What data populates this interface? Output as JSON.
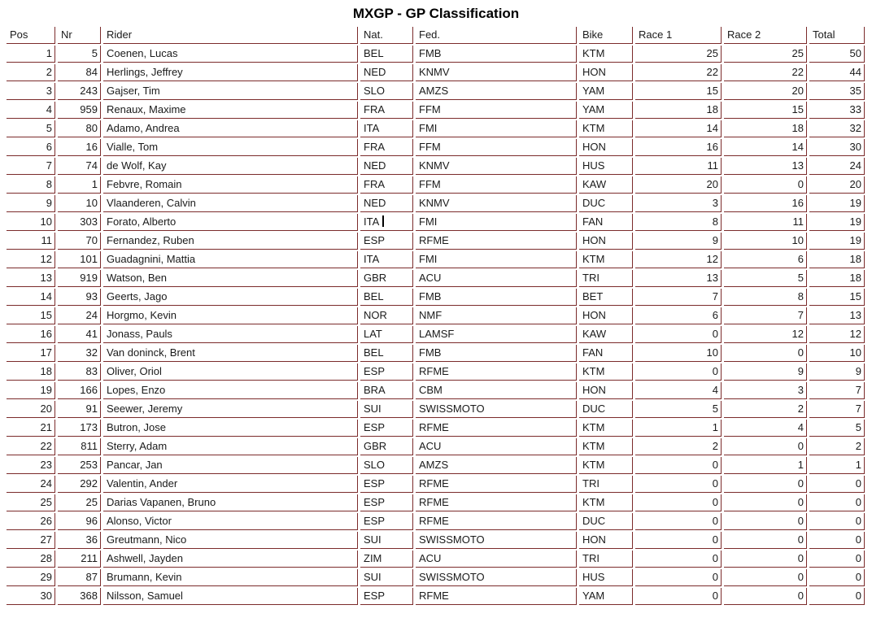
{
  "title": "MXGP - GP Classification",
  "colors": {
    "table_border": "#7b2b2b",
    "text": "#1a1a1a",
    "background": "#ffffff"
  },
  "table": {
    "columns": [
      {
        "key": "pos",
        "label": "Pos",
        "align": "right"
      },
      {
        "key": "nr",
        "label": "Nr",
        "align": "right"
      },
      {
        "key": "rider",
        "label": "Rider",
        "align": "left"
      },
      {
        "key": "nat",
        "label": "Nat.",
        "align": "left"
      },
      {
        "key": "fed",
        "label": "Fed.",
        "align": "left"
      },
      {
        "key": "bike",
        "label": "Bike",
        "align": "left"
      },
      {
        "key": "race1",
        "label": "Race 1",
        "align": "right"
      },
      {
        "key": "race2",
        "label": "Race 2",
        "align": "right"
      },
      {
        "key": "total",
        "label": "Total",
        "align": "right"
      }
    ],
    "caret": {
      "row_index": 9,
      "col_index": 3
    },
    "rows": [
      [
        "1",
        "5",
        "Coenen, Lucas",
        "BEL",
        "FMB",
        "KTM",
        "25",
        "25",
        "50"
      ],
      [
        "2",
        "84",
        "Herlings, Jeffrey",
        "NED",
        "KNMV",
        "HON",
        "22",
        "22",
        "44"
      ],
      [
        "3",
        "243",
        "Gajser, Tim",
        "SLO",
        "AMZS",
        "YAM",
        "15",
        "20",
        "35"
      ],
      [
        "4",
        "959",
        "Renaux, Maxime",
        "FRA",
        "FFM",
        "YAM",
        "18",
        "15",
        "33"
      ],
      [
        "5",
        "80",
        "Adamo, Andrea",
        "ITA",
        "FMI",
        "KTM",
        "14",
        "18",
        "32"
      ],
      [
        "6",
        "16",
        "Vialle, Tom",
        "FRA",
        "FFM",
        "HON",
        "16",
        "14",
        "30"
      ],
      [
        "7",
        "74",
        "de Wolf, Kay",
        "NED",
        "KNMV",
        "HUS",
        "11",
        "13",
        "24"
      ],
      [
        "8",
        "1",
        "Febvre, Romain",
        "FRA",
        "FFM",
        "KAW",
        "20",
        "0",
        "20"
      ],
      [
        "9",
        "10",
        "Vlaanderen, Calvin",
        "NED",
        "KNMV",
        "DUC",
        "3",
        "16",
        "19"
      ],
      [
        "10",
        "303",
        "Forato, Alberto",
        "ITA",
        "FMI",
        "FAN",
        "8",
        "11",
        "19"
      ],
      [
        "11",
        "70",
        "Fernandez, Ruben",
        "ESP",
        "RFME",
        "HON",
        "9",
        "10",
        "19"
      ],
      [
        "12",
        "101",
        "Guadagnini, Mattia",
        "ITA",
        "FMI",
        "KTM",
        "12",
        "6",
        "18"
      ],
      [
        "13",
        "919",
        "Watson, Ben",
        "GBR",
        "ACU",
        "TRI",
        "13",
        "5",
        "18"
      ],
      [
        "14",
        "93",
        "Geerts, Jago",
        "BEL",
        "FMB",
        "BET",
        "7",
        "8",
        "15"
      ],
      [
        "15",
        "24",
        "Horgmo, Kevin",
        "NOR",
        "NMF",
        "HON",
        "6",
        "7",
        "13"
      ],
      [
        "16",
        "41",
        "Jonass, Pauls",
        "LAT",
        "LAMSF",
        "KAW",
        "0",
        "12",
        "12"
      ],
      [
        "17",
        "32",
        "Van doninck, Brent",
        "BEL",
        "FMB",
        "FAN",
        "10",
        "0",
        "10"
      ],
      [
        "18",
        "83",
        "Oliver, Oriol",
        "ESP",
        "RFME",
        "KTM",
        "0",
        "9",
        "9"
      ],
      [
        "19",
        "166",
        "Lopes, Enzo",
        "BRA",
        "CBM",
        "HON",
        "4",
        "3",
        "7"
      ],
      [
        "20",
        "91",
        "Seewer, Jeremy",
        "SUI",
        "SWISSMOTO",
        "DUC",
        "5",
        "2",
        "7"
      ],
      [
        "21",
        "173",
        "Butron, Jose",
        "ESP",
        "RFME",
        "KTM",
        "1",
        "4",
        "5"
      ],
      [
        "22",
        "811",
        "Sterry, Adam",
        "GBR",
        "ACU",
        "KTM",
        "2",
        "0",
        "2"
      ],
      [
        "23",
        "253",
        "Pancar, Jan",
        "SLO",
        "AMZS",
        "KTM",
        "0",
        "1",
        "1"
      ],
      [
        "24",
        "292",
        "Valentin, Ander",
        "ESP",
        "RFME",
        "TRI",
        "0",
        "0",
        "0"
      ],
      [
        "25",
        "25",
        "Darias Vapanen, Bruno",
        "ESP",
        "RFME",
        "KTM",
        "0",
        "0",
        "0"
      ],
      [
        "26",
        "96",
        "Alonso, Victor",
        "ESP",
        "RFME",
        "DUC",
        "0",
        "0",
        "0"
      ],
      [
        "27",
        "36",
        "Greutmann, Nico",
        "SUI",
        "SWISSMOTO",
        "HON",
        "0",
        "0",
        "0"
      ],
      [
        "28",
        "211",
        "Ashwell, Jayden",
        "ZIM",
        "ACU",
        "TRI",
        "0",
        "0",
        "0"
      ],
      [
        "29",
        "87",
        "Brumann, Kevin",
        "SUI",
        "SWISSMOTO",
        "HUS",
        "0",
        "0",
        "0"
      ],
      [
        "30",
        "368",
        "Nilsson, Samuel",
        "ESP",
        "RFME",
        "YAM",
        "0",
        "0",
        "0"
      ]
    ]
  }
}
